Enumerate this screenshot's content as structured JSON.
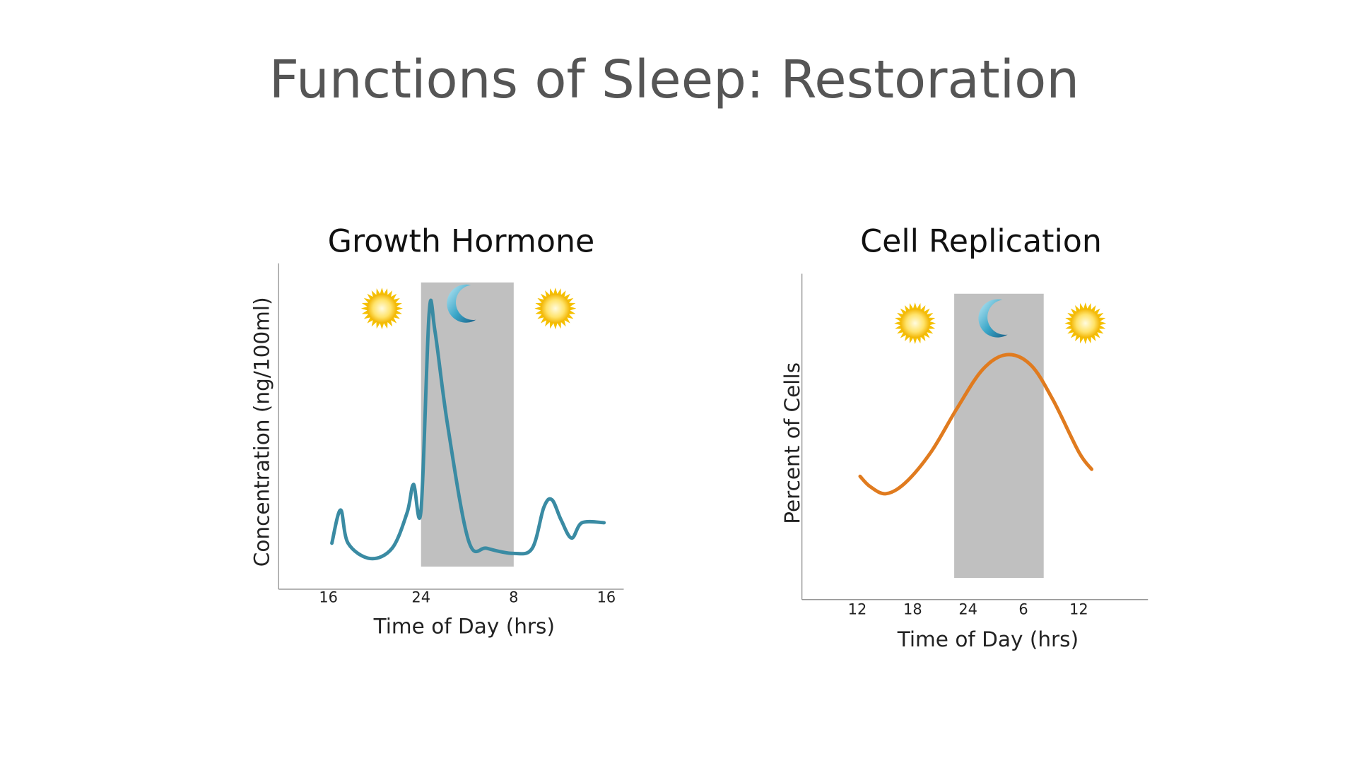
{
  "title": "Functions of Sleep: Restoration",
  "chart_data": [
    {
      "type": "line",
      "title": "Growth Hormone",
      "x_label": "Time of Day (hrs)",
      "y_label": "Concentration (ng/100ml)",
      "xlim": [
        11.7,
        41.5
      ],
      "ylim": [
        0,
        6
      ],
      "xticks": [
        16,
        24,
        {
          "value": 32,
          "label": "8"
        },
        {
          "value": 40,
          "label": "16"
        }
      ],
      "shade": [
        24,
        32
      ],
      "series": [
        {
          "color": "#3a8ba3",
          "x": [
            16.3,
            17.05,
            17.7,
            19.6,
            21.5,
            22.8,
            23.35,
            24,
            24.7,
            25.2,
            26.3,
            28.1,
            29.7,
            32,
            33.6,
            34.6,
            35.3,
            36.1,
            37,
            37.9,
            39.8
          ],
          "values": [
            0.9,
            1.55,
            0.9,
            0.6,
            0.8,
            1.5,
            2.05,
            1.55,
            5.4,
            5.05,
            3.2,
            0.95,
            0.8,
            0.7,
            0.8,
            1.6,
            1.75,
            1.35,
            1.0,
            1.3,
            1.3
          ]
        }
      ]
    },
    {
      "type": "line",
      "title": "Cell Replication",
      "x_label": "Time of Day (hrs)",
      "y_label": "Percent of Cells",
      "xlim": [
        6,
        43.5
      ],
      "ylim": [
        0,
        6
      ],
      "xticks": [
        12,
        18,
        24,
        {
          "value": 30,
          "label": "6"
        },
        {
          "value": 36,
          "label": "12"
        }
      ],
      "shade": [
        22.5,
        32.2
      ],
      "series": [
        {
          "color": "#e07b1f",
          "x": [
            12.3,
            13.4,
            15.1,
            17.2,
            20.0,
            22.8,
            25.6,
            28.2,
            30.8,
            33.2,
            36.0,
            37.4
          ],
          "values": [
            2.27,
            2.08,
            1.95,
            2.15,
            2.72,
            3.52,
            4.24,
            4.51,
            4.32,
            3.68,
            2.72,
            2.4
          ]
        }
      ]
    }
  ]
}
